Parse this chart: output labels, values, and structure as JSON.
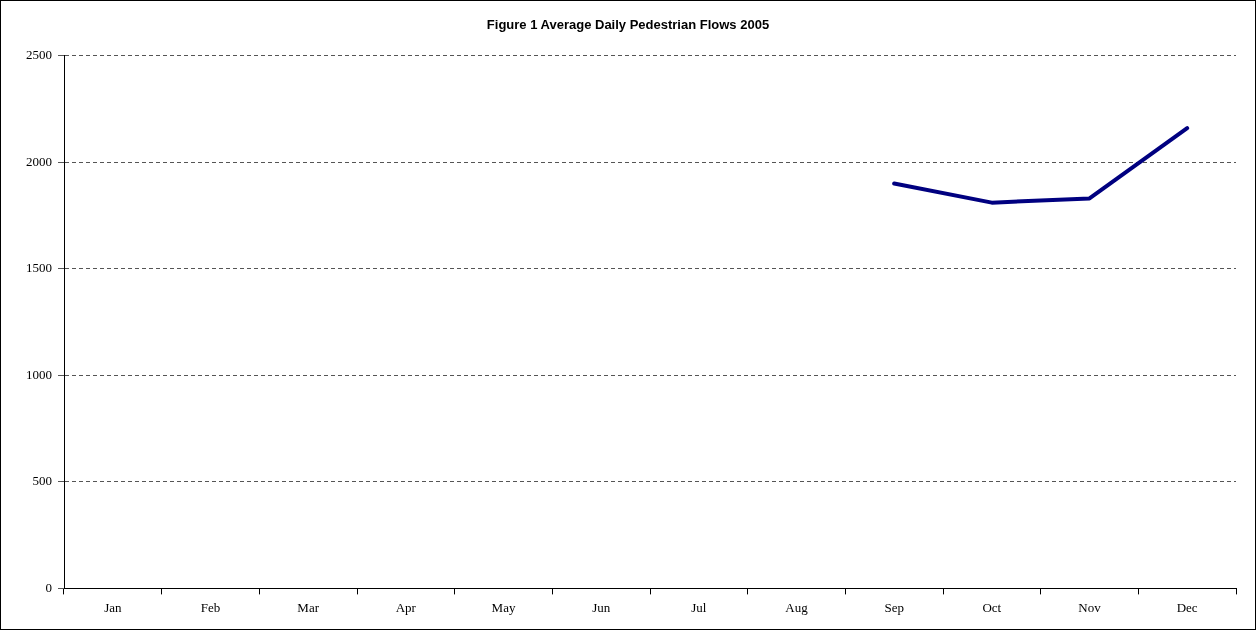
{
  "chart_data": {
    "type": "line",
    "title": "Figure 1 Average Daily Pedestrian Flows 2005",
    "categories": [
      "Jan",
      "Feb",
      "Mar",
      "Apr",
      "May",
      "Jun",
      "Jul",
      "Aug",
      "Sep",
      "Oct",
      "Nov",
      "Dec"
    ],
    "series": [
      {
        "color": "#000080",
        "values": [
          null,
          null,
          null,
          null,
          null,
          null,
          null,
          null,
          1900,
          1810,
          1830,
          2160
        ]
      }
    ],
    "ylim": [
      0,
      2500
    ],
    "yticks": [
      0,
      500,
      1000,
      1500,
      2000,
      2500
    ],
    "grid": "y",
    "legend": false,
    "marker": "none",
    "line_style": "solid"
  }
}
